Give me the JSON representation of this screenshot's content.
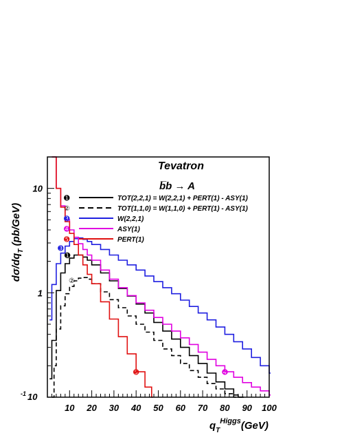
{
  "chart_data": {
    "type": "line",
    "title": "Tevatron",
    "subtitle": "b̅b → A",
    "xlabel": "q",
    "xlabel_sub": "T",
    "xlabel_sup": "Higgs",
    "xlabel_tail": "(GeV)",
    "ylabel": "dσ/dq",
    "ylabel_sub": "T",
    "ylabel_tail": " (pb/GeV)",
    "xlim": [
      0,
      100
    ],
    "ylim": [
      0.1,
      20
    ],
    "yscale": "log",
    "x_ticks": [
      "10",
      "20",
      "30",
      "40",
      "50",
      "60",
      "70",
      "80",
      "90",
      "100"
    ],
    "y_ticks": [
      {
        "value": 10,
        "label": "10"
      },
      {
        "value": 1,
        "label": "1"
      }
    ],
    "y_tick_bottom": {
      "label": "10",
      "sup": "-1"
    },
    "legend": [
      {
        "marker": "➊",
        "label": "TOT(2,2,1) = W(2,2,1) + PERT(1) - ASY(1)",
        "color": "#000000",
        "dash": "solid"
      },
      {
        "marker": "②",
        "label": "TOT(1,1,0) = W(1,1,0) + PERT(1) - ASY(1)",
        "color": "#000000",
        "dash": "dashed"
      },
      {
        "marker": "➌",
        "label": "W(2,2,1)",
        "color": "#1f1fe0",
        "dash": "solid"
      },
      {
        "marker": "➍",
        "label": "ASY(1)",
        "color": "#e000e0",
        "dash": "solid"
      },
      {
        "marker": "➎",
        "label": "PERT(1)",
        "color": "#e01010",
        "dash": "solid"
      }
    ],
    "series": [
      {
        "name": "TOT(2,2,1)",
        "color": "#000000",
        "dash": "solid",
        "x": [
          1,
          2,
          4,
          6,
          8,
          10,
          12,
          14,
          16,
          18,
          20,
          24,
          28,
          32,
          36,
          40,
          44,
          48,
          52,
          56,
          60,
          64,
          68,
          72,
          76,
          80,
          84,
          86,
          88
        ],
        "y": [
          0.15,
          0.35,
          1.05,
          1.55,
          1.9,
          2.15,
          2.3,
          2.3,
          2.2,
          2.05,
          1.85,
          1.55,
          1.3,
          1.1,
          0.93,
          0.78,
          0.64,
          0.52,
          0.43,
          0.36,
          0.3,
          0.25,
          0.21,
          0.17,
          0.14,
          0.12,
          0.105,
          0.1,
          0.1
        ]
      },
      {
        "name": "TOT(1,1,0)",
        "color": "#000000",
        "dash": "dashed",
        "x": [
          2,
          3,
          4,
          6,
          8,
          10,
          12,
          14,
          16,
          18,
          20,
          24,
          28,
          32,
          36,
          40,
          44,
          48,
          52,
          56,
          60,
          64,
          68,
          72,
          76,
          80,
          84,
          88
        ],
        "y": [
          0.1,
          0.2,
          0.45,
          0.75,
          0.98,
          1.15,
          1.3,
          1.38,
          1.4,
          1.35,
          1.22,
          1.02,
          0.86,
          0.72,
          0.6,
          0.5,
          0.42,
          0.35,
          0.29,
          0.25,
          0.21,
          0.18,
          0.155,
          0.135,
          0.12,
          0.108,
          0.1,
          0.1
        ]
      },
      {
        "name": "W(2,2,1)",
        "color": "#1f1fe0",
        "dash": "solid",
        "x": [
          1,
          2,
          4,
          6,
          8,
          10,
          12,
          14,
          16,
          18,
          20,
          24,
          28,
          32,
          36,
          40,
          44,
          48,
          52,
          56,
          60,
          64,
          68,
          72,
          76,
          80,
          84,
          88,
          92,
          96,
          100
        ],
        "y": [
          0.55,
          1.2,
          1.9,
          2.4,
          2.8,
          3.1,
          3.3,
          3.35,
          3.25,
          3.1,
          2.9,
          2.6,
          2.3,
          2.05,
          1.85,
          1.65,
          1.45,
          1.28,
          1.12,
          0.98,
          0.85,
          0.74,
          0.64,
          0.55,
          0.47,
          0.4,
          0.34,
          0.29,
          0.24,
          0.2,
          0.17
        ]
      },
      {
        "name": "ASY(1)",
        "color": "#e000e0",
        "dash": "solid",
        "x": [
          2,
          4,
          6,
          8,
          10,
          12,
          14,
          16,
          18,
          20,
          24,
          28,
          32,
          36,
          40,
          44,
          48,
          52,
          56,
          60,
          64,
          68,
          72,
          76,
          80,
          84,
          88,
          92,
          96,
          100
        ],
        "y": [
          20,
          10,
          6.8,
          5.0,
          4.0,
          3.4,
          2.95,
          2.6,
          2.3,
          2.05,
          1.65,
          1.35,
          1.12,
          0.94,
          0.8,
          0.68,
          0.58,
          0.5,
          0.43,
          0.37,
          0.32,
          0.27,
          0.23,
          0.2,
          0.175,
          0.155,
          0.138,
          0.125,
          0.115,
          0.105
        ]
      },
      {
        "name": "PERT(1)",
        "color": "#e01010",
        "dash": "solid",
        "x": [
          2,
          4,
          6,
          8,
          10,
          12,
          14,
          16,
          18,
          20,
          24,
          28,
          32,
          36,
          40,
          44,
          47
        ],
        "y": [
          20,
          10,
          6.6,
          4.8,
          3.7,
          2.9,
          2.3,
          1.85,
          1.5,
          1.22,
          0.82,
          0.56,
          0.38,
          0.26,
          0.175,
          0.125,
          0.1
        ]
      }
    ],
    "annotations": [
      {
        "marker": "➊",
        "x": 9,
        "y": 2.3,
        "color": "#000000"
      },
      {
        "marker": "②",
        "x": 11,
        "y": 1.32,
        "color": "#000000"
      },
      {
        "marker": "➌",
        "x": 6,
        "y": 2.7,
        "color": "#1f1fe0"
      },
      {
        "marker": "➍",
        "x": 80,
        "y": 0.175,
        "color": "#e000e0"
      },
      {
        "marker": "➎",
        "x": 40,
        "y": 0.175,
        "color": "#e01010"
      }
    ],
    "grid": false,
    "legend_position": "top-right"
  }
}
